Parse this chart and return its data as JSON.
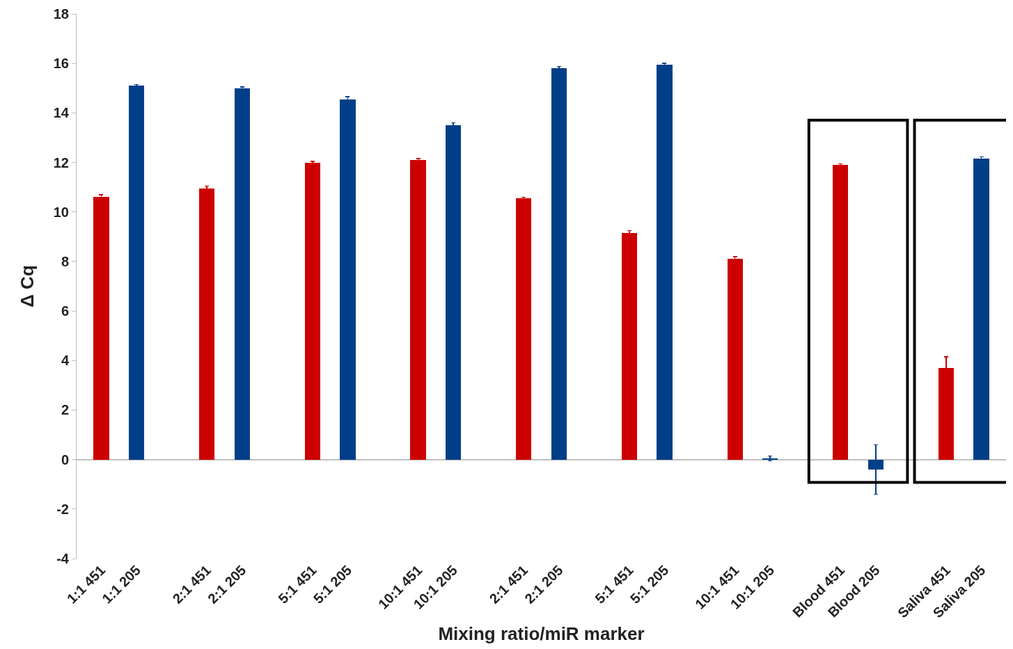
{
  "chart_data": {
    "type": "bar",
    "xlabel": "Mixing ratio/miR marker",
    "ylabel": "Δ Cq",
    "categories": [
      "1:1 451",
      "1:1 205",
      "2:1 451",
      "2:1 205",
      "5:1 451",
      "5:1 205",
      "10:1 451",
      "10:1 205",
      "2:1 451",
      "2:1 205",
      "5:1 451",
      "5:1 205",
      "10:1 451",
      "10:1 205",
      "Blood 451",
      "Blood 205",
      "Saliva 451",
      "Saliva 205"
    ],
    "values": [
      10.6,
      15.1,
      10.95,
      15.0,
      12.0,
      14.55,
      12.1,
      13.5,
      10.55,
      15.8,
      9.15,
      15.95,
      8.1,
      0.05,
      11.9,
      -0.4,
      3.7,
      12.15
    ],
    "errors": [
      0.1,
      0.05,
      0.1,
      0.05,
      0.05,
      0.1,
      0.05,
      0.1,
      0.05,
      0.08,
      0.1,
      0.05,
      0.1,
      0.1,
      0.05,
      1.0,
      0.45,
      0.08
    ],
    "colors": [
      "#cc0000",
      "#003f87",
      "#cc0000",
      "#003f87",
      "#cc0000",
      "#003f87",
      "#cc0000",
      "#003f87",
      "#cc0000",
      "#003f87",
      "#cc0000",
      "#003f87",
      "#cc0000",
      "#003f87",
      "#cc0000",
      "#003f87",
      "#cc0000",
      "#003f87"
    ],
    "ylim": [
      -4,
      18
    ],
    "yticks": [
      -4,
      -2,
      0,
      2,
      4,
      6,
      8,
      10,
      12,
      14,
      16,
      18
    ]
  }
}
